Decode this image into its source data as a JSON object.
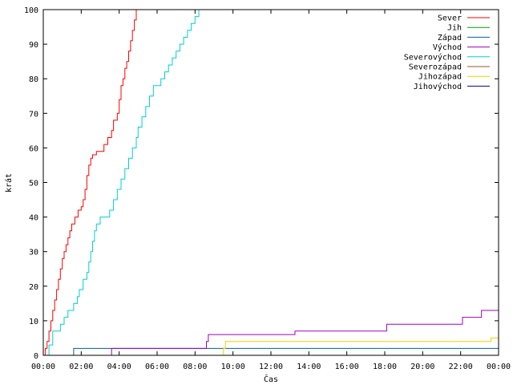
{
  "chart_data": {
    "type": "line",
    "xlabel": "Čas",
    "ylabel": "krát",
    "xlim": [
      0,
      1440
    ],
    "ylim": [
      0,
      100
    ],
    "x_ticks": [
      {
        "v": 0,
        "label": "00:00"
      },
      {
        "v": 120,
        "label": "02:00"
      },
      {
        "v": 240,
        "label": "04:00"
      },
      {
        "v": 360,
        "label": "06:00"
      },
      {
        "v": 480,
        "label": "08:00"
      },
      {
        "v": 600,
        "label": "10:00"
      },
      {
        "v": 720,
        "label": "12:00"
      },
      {
        "v": 840,
        "label": "14:00"
      },
      {
        "v": 960,
        "label": "16:00"
      },
      {
        "v": 1080,
        "label": "18:00"
      },
      {
        "v": 1200,
        "label": "20:00"
      },
      {
        "v": 1320,
        "label": "22:00"
      },
      {
        "v": 1440,
        "label": "00:00"
      }
    ],
    "y_ticks": [
      0,
      10,
      20,
      30,
      40,
      50,
      60,
      70,
      80,
      90,
      100
    ],
    "grid": false,
    "legend_position": "top-right",
    "series": [
      {
        "name": "Sever",
        "color": "#ff0000",
        "step": true,
        "points": [
          [
            0,
            0
          ],
          [
            6,
            2
          ],
          [
            12,
            4
          ],
          [
            18,
            7
          ],
          [
            24,
            10
          ],
          [
            30,
            13
          ],
          [
            36,
            16
          ],
          [
            42,
            19
          ],
          [
            48,
            22
          ],
          [
            54,
            25
          ],
          [
            60,
            28
          ],
          [
            66,
            30
          ],
          [
            72,
            32
          ],
          [
            78,
            34
          ],
          [
            84,
            36
          ],
          [
            90,
            38
          ],
          [
            100,
            40
          ],
          [
            110,
            42
          ],
          [
            120,
            43
          ],
          [
            126,
            45
          ],
          [
            132,
            48
          ],
          [
            138,
            52
          ],
          [
            144,
            55
          ],
          [
            150,
            57
          ],
          [
            156,
            58
          ],
          [
            168,
            59
          ],
          [
            180,
            59
          ],
          [
            192,
            61
          ],
          [
            204,
            63
          ],
          [
            216,
            65
          ],
          [
            222,
            68
          ],
          [
            234,
            70
          ],
          [
            240,
            74
          ],
          [
            246,
            78
          ],
          [
            252,
            80
          ],
          [
            258,
            83
          ],
          [
            264,
            85
          ],
          [
            270,
            88
          ],
          [
            276,
            91
          ],
          [
            282,
            94
          ],
          [
            288,
            97
          ],
          [
            294,
            100
          ]
        ]
      },
      {
        "name": "Jih",
        "color": "#00a000",
        "step": true,
        "points": []
      },
      {
        "name": "Západ",
        "color": "#0060a0",
        "step": true,
        "points": [
          [
            0,
            0
          ],
          [
            96,
            2
          ],
          [
            720,
            2
          ],
          [
            1440,
            4
          ]
        ]
      },
      {
        "name": "Východ",
        "color": "#a000c0",
        "step": true,
        "points": [
          [
            0,
            0
          ],
          [
            216,
            2
          ],
          [
            510,
            2
          ],
          [
            516,
            4
          ],
          [
            522,
            6
          ],
          [
            790,
            6
          ],
          [
            796,
            7
          ],
          [
            1080,
            7
          ],
          [
            1086,
            9
          ],
          [
            1320,
            9
          ],
          [
            1326,
            11
          ],
          [
            1380,
            11
          ],
          [
            1386,
            13
          ],
          [
            1440,
            13
          ]
        ]
      },
      {
        "name": "Severovýchod",
        "color": "#00d0d0",
        "step": true,
        "points": [
          [
            0,
            0
          ],
          [
            18,
            3
          ],
          [
            30,
            7
          ],
          [
            54,
            9
          ],
          [
            66,
            11
          ],
          [
            78,
            13
          ],
          [
            96,
            15
          ],
          [
            108,
            17
          ],
          [
            114,
            19
          ],
          [
            126,
            22
          ],
          [
            138,
            24
          ],
          [
            144,
            27
          ],
          [
            150,
            30
          ],
          [
            156,
            33
          ],
          [
            162,
            36
          ],
          [
            168,
            38
          ],
          [
            180,
            40
          ],
          [
            210,
            42
          ],
          [
            222,
            45
          ],
          [
            234,
            48
          ],
          [
            246,
            51
          ],
          [
            258,
            54
          ],
          [
            270,
            57
          ],
          [
            282,
            60
          ],
          [
            294,
            63
          ],
          [
            300,
            66
          ],
          [
            312,
            69
          ],
          [
            324,
            72
          ],
          [
            336,
            75
          ],
          [
            348,
            78
          ],
          [
            372,
            80
          ],
          [
            384,
            82
          ],
          [
            396,
            84
          ],
          [
            408,
            86
          ],
          [
            420,
            88
          ],
          [
            432,
            90
          ],
          [
            444,
            92
          ],
          [
            456,
            94
          ],
          [
            468,
            96
          ],
          [
            480,
            98
          ],
          [
            492,
            100
          ]
        ]
      },
      {
        "name": "Severozápad",
        "color": "#a05030",
        "step": true,
        "points": []
      },
      {
        "name": "Jihozápad",
        "color": "#f0d000",
        "step": true,
        "points": [
          [
            0,
            0
          ],
          [
            570,
            2
          ],
          [
            576,
            4
          ],
          [
            1410,
            4
          ],
          [
            1416,
            5
          ],
          [
            1440,
            5
          ]
        ]
      },
      {
        "name": "Jihovýchod",
        "color": "#000090",
        "step": true,
        "points": []
      }
    ]
  }
}
